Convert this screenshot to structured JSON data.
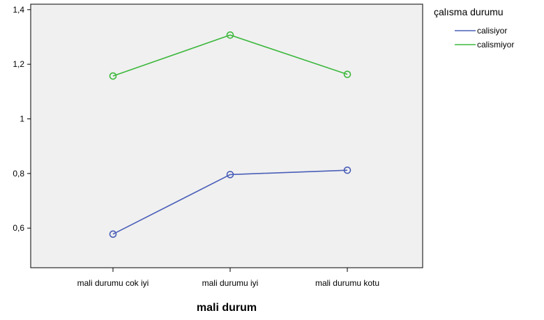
{
  "chart_data": {
    "type": "line",
    "title": "",
    "xlabel": "mali durum",
    "ylabel": "",
    "categories": [
      "mali durumu cok iyi",
      "mali durumu iyi",
      "mali durumu kotu"
    ],
    "yticks": [
      "0,6",
      "0,8",
      "1",
      "1,2",
      "1,4"
    ],
    "ytick_values": [
      0.6,
      0.8,
      1.0,
      1.2,
      1.4
    ],
    "ylim": [
      0.455,
      1.42
    ],
    "grid": false,
    "legend_position": "top-right",
    "legend_title": "çalısma durumu",
    "series": [
      {
        "name": "calisiyor",
        "color": "#4a5fb8",
        "values": [
          0.578,
          0.796,
          0.812
        ]
      },
      {
        "name": "calismiyor",
        "color": "#3cb83c",
        "values": [
          1.157,
          1.307,
          1.163
        ]
      }
    ],
    "plot_background": "#f0f0f0"
  }
}
